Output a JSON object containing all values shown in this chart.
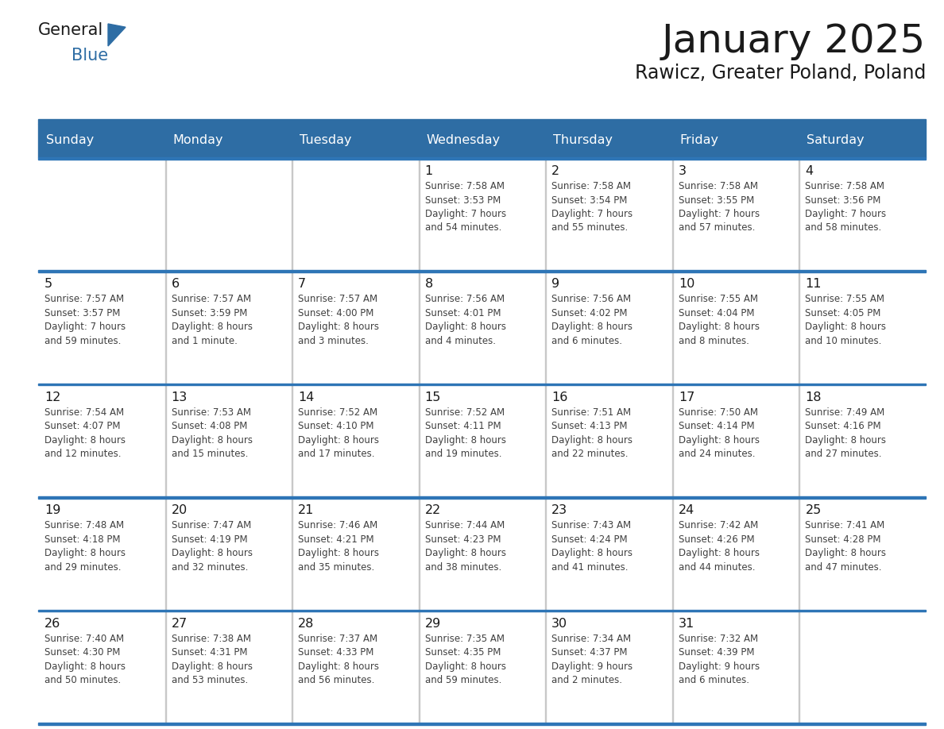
{
  "title": "January 2025",
  "subtitle": "Rawicz, Greater Poland, Poland",
  "header_bg": "#2E6DA4",
  "header_text_color": "#FFFFFF",
  "cell_bg_white": "#FFFFFF",
  "cell_bg_gray": "#F2F2F2",
  "cell_border_color": "#2E75B6",
  "day_names": [
    "Sunday",
    "Monday",
    "Tuesday",
    "Wednesday",
    "Thursday",
    "Friday",
    "Saturday"
  ],
  "title_color": "#1a1a1a",
  "subtitle_color": "#1a1a1a",
  "day_num_color": "#1a1a1a",
  "info_color": "#404040",
  "logo_general_color": "#1a1a1a",
  "logo_blue_color": "#2E6DA4",
  "calendar": [
    [
      {
        "day": null,
        "info": ""
      },
      {
        "day": null,
        "info": ""
      },
      {
        "day": null,
        "info": ""
      },
      {
        "day": 1,
        "info": "Sunrise: 7:58 AM\nSunset: 3:53 PM\nDaylight: 7 hours\nand 54 minutes."
      },
      {
        "day": 2,
        "info": "Sunrise: 7:58 AM\nSunset: 3:54 PM\nDaylight: 7 hours\nand 55 minutes."
      },
      {
        "day": 3,
        "info": "Sunrise: 7:58 AM\nSunset: 3:55 PM\nDaylight: 7 hours\nand 57 minutes."
      },
      {
        "day": 4,
        "info": "Sunrise: 7:58 AM\nSunset: 3:56 PM\nDaylight: 7 hours\nand 58 minutes."
      }
    ],
    [
      {
        "day": 5,
        "info": "Sunrise: 7:57 AM\nSunset: 3:57 PM\nDaylight: 7 hours\nand 59 minutes."
      },
      {
        "day": 6,
        "info": "Sunrise: 7:57 AM\nSunset: 3:59 PM\nDaylight: 8 hours\nand 1 minute."
      },
      {
        "day": 7,
        "info": "Sunrise: 7:57 AM\nSunset: 4:00 PM\nDaylight: 8 hours\nand 3 minutes."
      },
      {
        "day": 8,
        "info": "Sunrise: 7:56 AM\nSunset: 4:01 PM\nDaylight: 8 hours\nand 4 minutes."
      },
      {
        "day": 9,
        "info": "Sunrise: 7:56 AM\nSunset: 4:02 PM\nDaylight: 8 hours\nand 6 minutes."
      },
      {
        "day": 10,
        "info": "Sunrise: 7:55 AM\nSunset: 4:04 PM\nDaylight: 8 hours\nand 8 minutes."
      },
      {
        "day": 11,
        "info": "Sunrise: 7:55 AM\nSunset: 4:05 PM\nDaylight: 8 hours\nand 10 minutes."
      }
    ],
    [
      {
        "day": 12,
        "info": "Sunrise: 7:54 AM\nSunset: 4:07 PM\nDaylight: 8 hours\nand 12 minutes."
      },
      {
        "day": 13,
        "info": "Sunrise: 7:53 AM\nSunset: 4:08 PM\nDaylight: 8 hours\nand 15 minutes."
      },
      {
        "day": 14,
        "info": "Sunrise: 7:52 AM\nSunset: 4:10 PM\nDaylight: 8 hours\nand 17 minutes."
      },
      {
        "day": 15,
        "info": "Sunrise: 7:52 AM\nSunset: 4:11 PM\nDaylight: 8 hours\nand 19 minutes."
      },
      {
        "day": 16,
        "info": "Sunrise: 7:51 AM\nSunset: 4:13 PM\nDaylight: 8 hours\nand 22 minutes."
      },
      {
        "day": 17,
        "info": "Sunrise: 7:50 AM\nSunset: 4:14 PM\nDaylight: 8 hours\nand 24 minutes."
      },
      {
        "day": 18,
        "info": "Sunrise: 7:49 AM\nSunset: 4:16 PM\nDaylight: 8 hours\nand 27 minutes."
      }
    ],
    [
      {
        "day": 19,
        "info": "Sunrise: 7:48 AM\nSunset: 4:18 PM\nDaylight: 8 hours\nand 29 minutes."
      },
      {
        "day": 20,
        "info": "Sunrise: 7:47 AM\nSunset: 4:19 PM\nDaylight: 8 hours\nand 32 minutes."
      },
      {
        "day": 21,
        "info": "Sunrise: 7:46 AM\nSunset: 4:21 PM\nDaylight: 8 hours\nand 35 minutes."
      },
      {
        "day": 22,
        "info": "Sunrise: 7:44 AM\nSunset: 4:23 PM\nDaylight: 8 hours\nand 38 minutes."
      },
      {
        "day": 23,
        "info": "Sunrise: 7:43 AM\nSunset: 4:24 PM\nDaylight: 8 hours\nand 41 minutes."
      },
      {
        "day": 24,
        "info": "Sunrise: 7:42 AM\nSunset: 4:26 PM\nDaylight: 8 hours\nand 44 minutes."
      },
      {
        "day": 25,
        "info": "Sunrise: 7:41 AM\nSunset: 4:28 PM\nDaylight: 8 hours\nand 47 minutes."
      }
    ],
    [
      {
        "day": 26,
        "info": "Sunrise: 7:40 AM\nSunset: 4:30 PM\nDaylight: 8 hours\nand 50 minutes."
      },
      {
        "day": 27,
        "info": "Sunrise: 7:38 AM\nSunset: 4:31 PM\nDaylight: 8 hours\nand 53 minutes."
      },
      {
        "day": 28,
        "info": "Sunrise: 7:37 AM\nSunset: 4:33 PM\nDaylight: 8 hours\nand 56 minutes."
      },
      {
        "day": 29,
        "info": "Sunrise: 7:35 AM\nSunset: 4:35 PM\nDaylight: 8 hours\nand 59 minutes."
      },
      {
        "day": 30,
        "info": "Sunrise: 7:34 AM\nSunset: 4:37 PM\nDaylight: 9 hours\nand 2 minutes."
      },
      {
        "day": 31,
        "info": "Sunrise: 7:32 AM\nSunset: 4:39 PM\nDaylight: 9 hours\nand 6 minutes."
      },
      {
        "day": null,
        "info": ""
      }
    ]
  ]
}
